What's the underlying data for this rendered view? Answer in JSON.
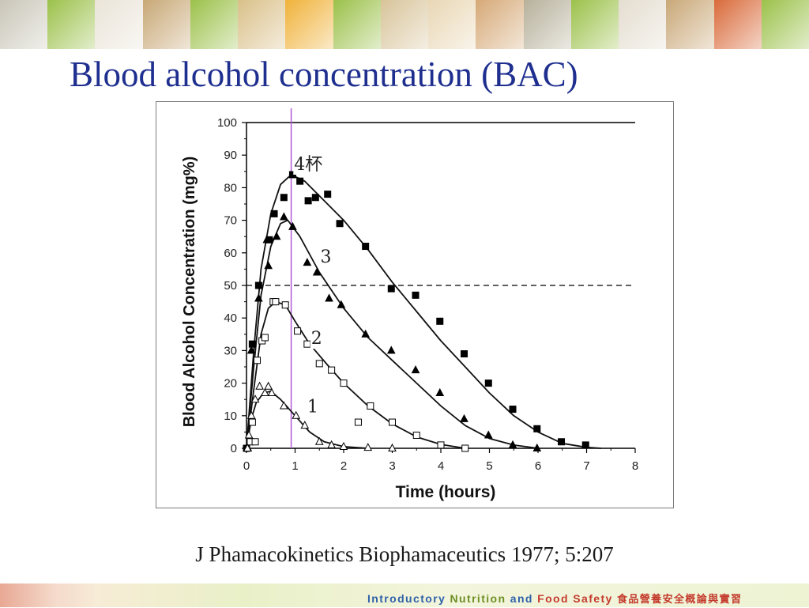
{
  "slide": {
    "title": "Blood alcohol concentration (BAC)",
    "citation": "J Phamacokinetics Biophamaceutics 1977; 5:207",
    "footer_brand": {
      "part_a": "Introductory",
      "part_b": "Nutrition",
      "part_c": "and",
      "part_d": "Food",
      "part_e": "Safety",
      "part_zh": "食品營養安全概論與實習"
    },
    "banner_colors": [
      "#c9c6b8",
      "#9bc14a",
      "#eae4d8",
      "#c8a876",
      "#9bc14a",
      "#d9c089",
      "#f0b23a",
      "#9bc14a",
      "#d8c49a",
      "#e9d7b5",
      "#d6a977",
      "#b7b19b",
      "#9bc14a",
      "#e4ddd0",
      "#c9a878",
      "#d96a3a",
      "#9bc14a"
    ]
  },
  "chart_data": {
    "type": "scatter",
    "xlabel": "Time (hours)",
    "ylabel": "Blood Alcohol Concentration (mg%)",
    "xlim": [
      0,
      8
    ],
    "ylim": [
      0,
      100
    ],
    "x_ticks": [
      0,
      1,
      2,
      3,
      4,
      5,
      6,
      7,
      8
    ],
    "y_ticks": [
      0,
      10,
      20,
      30,
      40,
      50,
      60,
      70,
      80,
      90,
      100
    ],
    "threshold_line": 50,
    "vertical_marker_x": 0.92,
    "grid": false,
    "series": [
      {
        "name": "4杯",
        "marker": "filled-square",
        "points": [
          [
            0.0,
            0
          ],
          [
            0.12,
            32
          ],
          [
            0.25,
            50
          ],
          [
            0.47,
            64
          ],
          [
            0.57,
            72
          ],
          [
            0.77,
            77
          ],
          [
            0.95,
            84
          ],
          [
            1.1,
            82
          ],
          [
            1.27,
            76
          ],
          [
            1.42,
            77
          ],
          [
            1.67,
            78
          ],
          [
            1.92,
            69
          ],
          [
            2.45,
            62
          ],
          [
            2.98,
            49
          ],
          [
            3.48,
            47
          ],
          [
            3.98,
            39
          ],
          [
            4.48,
            29
          ],
          [
            4.98,
            20
          ],
          [
            5.48,
            12
          ],
          [
            5.98,
            6
          ],
          [
            6.48,
            2
          ],
          [
            6.98,
            1
          ]
        ],
        "curve": [
          [
            0.0,
            0
          ],
          [
            0.15,
            30
          ],
          [
            0.3,
            55
          ],
          [
            0.5,
            72
          ],
          [
            0.7,
            81
          ],
          [
            0.92,
            84
          ],
          [
            1.2,
            82
          ],
          [
            1.6,
            76
          ],
          [
            2.0,
            70
          ],
          [
            2.5,
            61
          ],
          [
            3.0,
            51
          ],
          [
            3.5,
            42
          ],
          [
            4.0,
            33
          ],
          [
            4.5,
            25
          ],
          [
            5.0,
            17
          ],
          [
            5.5,
            10
          ],
          [
            6.0,
            5
          ],
          [
            6.5,
            1.5
          ],
          [
            7.0,
            0.3
          ],
          [
            7.3,
            0
          ]
        ]
      },
      {
        "name": "3",
        "marker": "filled-triangle",
        "points": [
          [
            0.03,
            0
          ],
          [
            0.1,
            30
          ],
          [
            0.25,
            46
          ],
          [
            0.42,
            64
          ],
          [
            0.45,
            56
          ],
          [
            0.62,
            65
          ],
          [
            0.77,
            71
          ],
          [
            0.95,
            68
          ],
          [
            1.25,
            57
          ],
          [
            1.45,
            54
          ],
          [
            1.7,
            46
          ],
          [
            1.95,
            44
          ],
          [
            2.45,
            35
          ],
          [
            2.98,
            30
          ],
          [
            3.48,
            24
          ],
          [
            3.98,
            17
          ],
          [
            4.48,
            9
          ],
          [
            4.98,
            4
          ],
          [
            5.48,
            1
          ],
          [
            5.98,
            0
          ]
        ],
        "curve": [
          [
            0.0,
            0
          ],
          [
            0.15,
            25
          ],
          [
            0.3,
            47
          ],
          [
            0.5,
            62
          ],
          [
            0.7,
            69
          ],
          [
            0.85,
            70
          ],
          [
            1.1,
            65
          ],
          [
            1.5,
            54
          ],
          [
            2.0,
            43
          ],
          [
            2.5,
            34
          ],
          [
            3.0,
            27
          ],
          [
            3.5,
            20
          ],
          [
            4.0,
            13
          ],
          [
            4.5,
            7
          ],
          [
            5.0,
            3
          ],
          [
            5.5,
            1
          ],
          [
            6.0,
            0
          ]
        ]
      },
      {
        "name": "2",
        "marker": "open-square",
        "points": [
          [
            0.08,
            2
          ],
          [
            0.12,
            8
          ],
          [
            0.18,
            2
          ],
          [
            0.22,
            27
          ],
          [
            0.32,
            33
          ],
          [
            0.38,
            34
          ],
          [
            0.55,
            45
          ],
          [
            0.6,
            45
          ],
          [
            0.8,
            44
          ],
          [
            1.05,
            36
          ],
          [
            1.25,
            32
          ],
          [
            1.5,
            26
          ],
          [
            1.75,
            24
          ],
          [
            2.0,
            20
          ],
          [
            2.3,
            8
          ],
          [
            2.55,
            13
          ],
          [
            3.0,
            8
          ],
          [
            3.5,
            4
          ],
          [
            4.0,
            1
          ],
          [
            4.5,
            0
          ]
        ],
        "curve": [
          [
            0.0,
            0
          ],
          [
            0.15,
            18
          ],
          [
            0.3,
            35
          ],
          [
            0.45,
            43
          ],
          [
            0.6,
            45
          ],
          [
            0.8,
            44
          ],
          [
            1.0,
            39
          ],
          [
            1.3,
            32
          ],
          [
            1.7,
            25
          ],
          [
            2.0,
            20
          ],
          [
            2.5,
            13
          ],
          [
            3.0,
            7.5
          ],
          [
            3.5,
            3.5
          ],
          [
            4.0,
            1.2
          ],
          [
            4.5,
            0
          ]
        ]
      },
      {
        "name": "1",
        "marker": "open-triangle",
        "points": [
          [
            0.02,
            0
          ],
          [
            0.05,
            4
          ],
          [
            0.1,
            10
          ],
          [
            0.18,
            15
          ],
          [
            0.27,
            19
          ],
          [
            0.38,
            17
          ],
          [
            0.45,
            19
          ],
          [
            0.52,
            17
          ],
          [
            0.77,
            13
          ],
          [
            1.02,
            10
          ],
          [
            1.2,
            7
          ],
          [
            1.5,
            2
          ],
          [
            1.75,
            1
          ],
          [
            2.0,
            0.5
          ],
          [
            2.5,
            0.2
          ],
          [
            3.0,
            0
          ]
        ],
        "curve": [
          [
            0.0,
            0
          ],
          [
            0.1,
            9
          ],
          [
            0.2,
            14
          ],
          [
            0.35,
            17
          ],
          [
            0.5,
            17.5
          ],
          [
            0.7,
            15
          ],
          [
            1.0,
            10
          ],
          [
            1.3,
            5
          ],
          [
            1.6,
            2
          ],
          [
            2.0,
            0.5
          ],
          [
            2.5,
            0
          ]
        ]
      }
    ]
  }
}
